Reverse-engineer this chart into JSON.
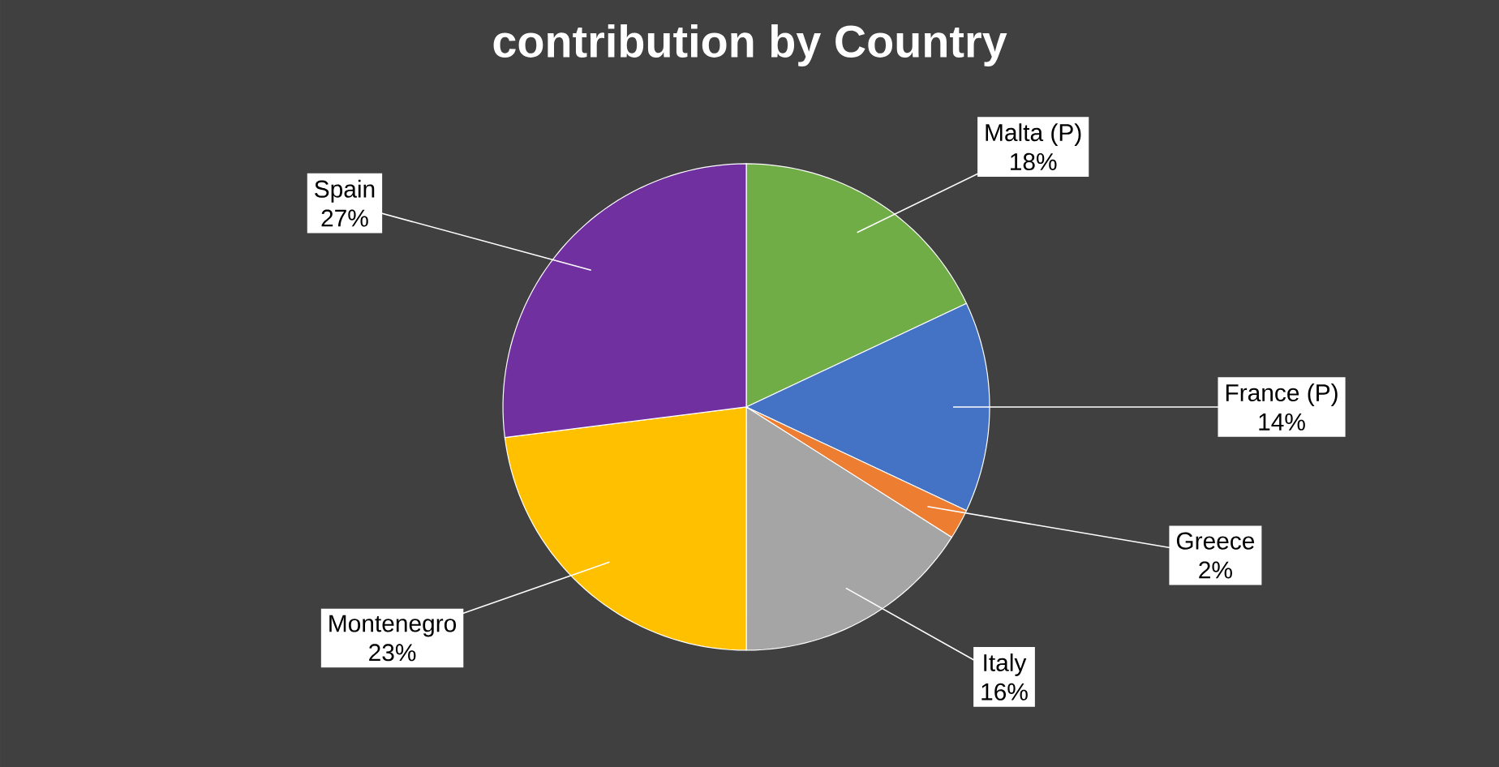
{
  "chart_data": {
    "type": "pie",
    "title": "contribution by Country",
    "categories": [
      "Malta (P)",
      "France (P)",
      "Greece",
      "Italy",
      "Montenegro",
      "Spain"
    ],
    "values": [
      18,
      14,
      2,
      16,
      23,
      27
    ],
    "value_labels": [
      "18%",
      "14%",
      "2%",
      "16%",
      "23%",
      "27%"
    ],
    "colors": [
      "#70ad47",
      "#4472c4",
      "#ed7d31",
      "#a5a5a5",
      "#ffc000",
      "#7030a0"
    ]
  }
}
